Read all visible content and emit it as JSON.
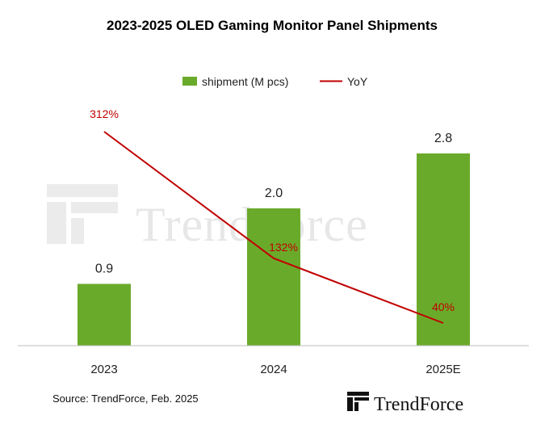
{
  "chart_data": {
    "type": "bar",
    "title": "2023-2025 OLED Gaming Monitor Panel Shipments",
    "categories": [
      "2023",
      "2024",
      "2025E"
    ],
    "series": [
      {
        "name": "shipment (M pcs)",
        "type": "bar",
        "values": [
          0.9,
          2.0,
          2.8
        ],
        "labels": [
          "0.9",
          "2.0",
          "2.8"
        ],
        "color": "#6aaa2a"
      },
      {
        "name": "YoY",
        "type": "line",
        "values": [
          312,
          132,
          40
        ],
        "unit": "%",
        "labels": [
          "312%",
          "132%",
          "40%"
        ],
        "color": "#c00000"
      }
    ],
    "xlabel": "",
    "ylabel": "",
    "ylim": [
      0,
      3.5
    ],
    "yoy_ylim": [
      0,
      400
    ],
    "grid": false,
    "legend_position": "top-center"
  },
  "source": "Source: TrendForce, Feb. 2025",
  "brand": {
    "watermark": "TrendForce",
    "logo_text": "TrendForce",
    "color": "#111111"
  }
}
